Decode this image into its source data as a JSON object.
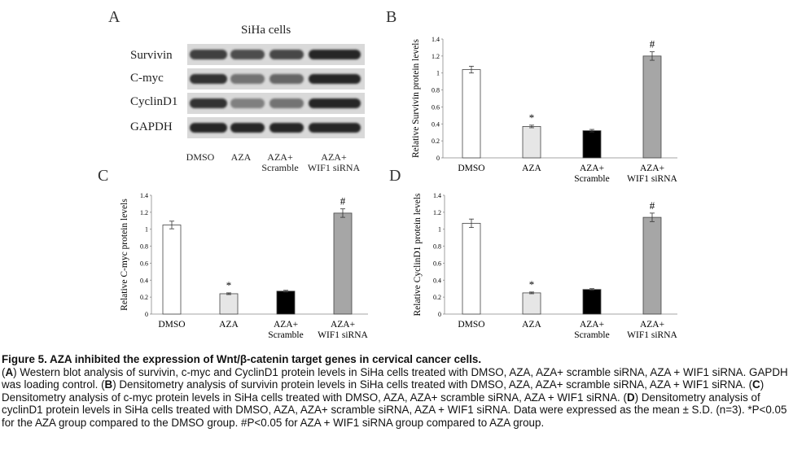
{
  "panels": {
    "A": "A",
    "B": "B",
    "C": "C",
    "D": "D"
  },
  "blot": {
    "title": "SiHa cells",
    "rows": [
      "Survivin",
      "C-myc",
      "CyclinD1",
      "GAPDH"
    ],
    "lanes": [
      {
        "line1": "DMSO",
        "line2": ""
      },
      {
        "line1": "AZA",
        "line2": ""
      },
      {
        "line1": "AZA+",
        "line2": "Scramble"
      },
      {
        "line1": "AZA+",
        "line2": "WIF1 siRNA"
      }
    ],
    "band_intensity": [
      [
        0.75,
        0.7,
        0.72,
        0.85
      ],
      [
        0.8,
        0.55,
        0.6,
        0.85
      ],
      [
        0.8,
        0.5,
        0.55,
        0.85
      ],
      [
        0.85,
        0.85,
        0.85,
        0.85
      ]
    ]
  },
  "chart_data": [
    {
      "id": "B",
      "type": "bar",
      "ylabel": "Relative Survivin protein levels",
      "ylim": [
        0,
        1.4
      ],
      "yticks": [
        "0",
        "0.2",
        "0.4",
        "0.6",
        "0.8",
        "1",
        "1.2",
        "1.4"
      ],
      "categories": [
        {
          "line1": "DMSO",
          "line2": ""
        },
        {
          "line1": "AZA",
          "line2": ""
        },
        {
          "line1": "AZA+",
          "line2": "Scramble"
        },
        {
          "line1": "AZA+",
          "line2": "WIF1 siRNA"
        }
      ],
      "values": [
        1.04,
        0.37,
        0.32,
        1.2
      ],
      "errors": [
        0.04,
        0.015,
        0.015,
        0.05
      ],
      "annotations": [
        "",
        "*",
        "",
        "#"
      ],
      "colors": [
        "#ffffff",
        "#e6e6e6",
        "#000000",
        "#a6a6a6"
      ]
    },
    {
      "id": "C",
      "type": "bar",
      "ylabel": "Relative C-myc protein levels",
      "ylim": [
        0,
        1.4
      ],
      "yticks": [
        "0",
        "0.2",
        "0.4",
        "0.6",
        "0.8",
        "1",
        "1.2",
        "1.4"
      ],
      "categories": [
        {
          "line1": "DMSO",
          "line2": ""
        },
        {
          "line1": "AZA",
          "line2": ""
        },
        {
          "line1": "AZA+",
          "line2": "Scramble"
        },
        {
          "line1": "AZA+",
          "line2": "WIF1 siRNA"
        }
      ],
      "values": [
        1.05,
        0.24,
        0.27,
        1.19
      ],
      "errors": [
        0.045,
        0.01,
        0.01,
        0.05
      ],
      "annotations": [
        "",
        "*",
        "",
        "#"
      ],
      "colors": [
        "#ffffff",
        "#e6e6e6",
        "#000000",
        "#a6a6a6"
      ]
    },
    {
      "id": "D",
      "type": "bar",
      "ylabel": "Relative CyclinD1 protein levels",
      "ylim": [
        0,
        1.4
      ],
      "yticks": [
        "0",
        "0.2",
        "0.4",
        "0.6",
        "0.8",
        "1",
        "1.2",
        "1.4"
      ],
      "categories": [
        {
          "line1": "DMSO",
          "line2": ""
        },
        {
          "line1": "AZA",
          "line2": ""
        },
        {
          "line1": "AZA+",
          "line2": "Scramble"
        },
        {
          "line1": "AZA+",
          "line2": "WIF1 siRNA"
        }
      ],
      "values": [
        1.07,
        0.25,
        0.29,
        1.14
      ],
      "errors": [
        0.05,
        0.01,
        0.01,
        0.05
      ],
      "annotations": [
        "",
        "*",
        "",
        "#"
      ],
      "colors": [
        "#ffffff",
        "#e6e6e6",
        "#000000",
        "#a6a6a6"
      ]
    }
  ],
  "caption": {
    "title": "Figure 5. AZA inhibited the expression of Wnt/β-catenin target genes in cervical cancer cells.",
    "parts": [
      {
        "b": "(",
        "t": ""
      },
      {
        "b": "A",
        "t": ") Western blot analysis of survivin, c-myc and CyclinD1 protein levels in SiHa cells treated with DMSO, AZA, AZA+ scramble siRNA, AZA + WIF1 siRNA. GAPDH was loading control. ("
      },
      {
        "b": "B",
        "t": ") Densitometry analysis of survivin protein levels in SiHa cells treated with DMSO, AZA, AZA+ scramble siRNA, AZA + WIF1 siRNA. ("
      },
      {
        "b": "C",
        "t": ") Densitometry analysis of c-myc protein levels in SiHa cells treated with DMSO, AZA, AZA+ scramble siRNA, AZA + WIF1 siRNA. ("
      },
      {
        "b": "D",
        "t": ") Densitometry analysis of cyclinD1 protein levels in SiHa cells treated with DMSO, AZA, AZA+ scramble siRNA, AZA + WIF1 siRNA. Data were expressed as the mean ± S.D. (n=3). *P<0.05 for the AZA group compared to the DMSO group. #P<0.05 for AZA + WIF1 siRNA group compared to AZA group."
      }
    ]
  }
}
